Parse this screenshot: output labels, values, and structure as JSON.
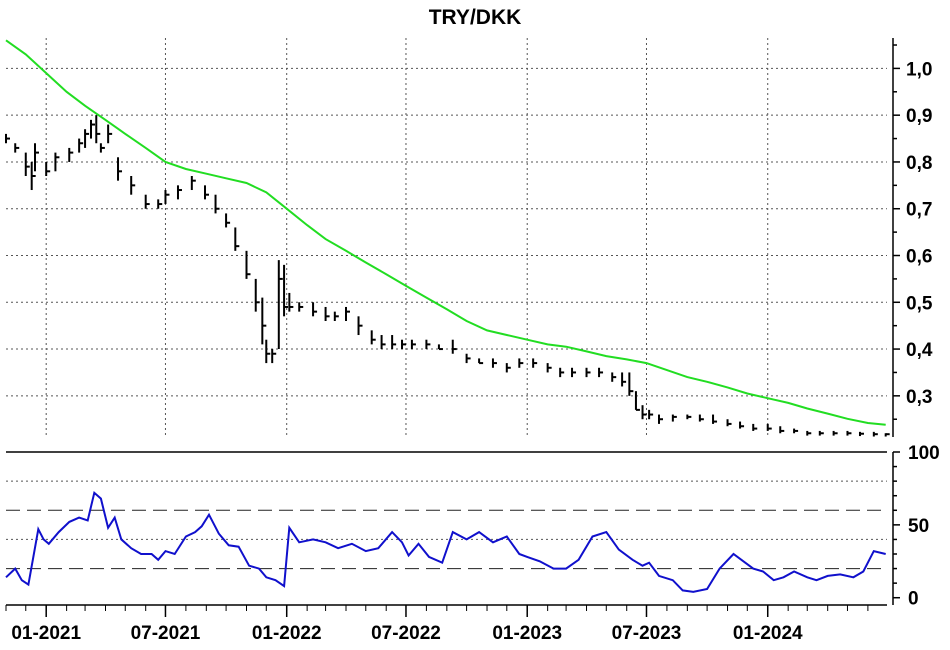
{
  "colors": {
    "price": "#000000",
    "moving_average": "#22dd22",
    "rsi": "#1010cc",
    "background": "#ffffff",
    "grid": "#555555"
  },
  "chart_data": [
    {
      "type": "line",
      "title": "TRY/DKK",
      "y_tick_labels": [
        "1,0",
        "0,9",
        "0,8",
        "0,7",
        "0,6",
        "0,5",
        "0,4",
        "0,3"
      ],
      "y_ticks": [
        1.0,
        0.9,
        0.8,
        0.7,
        0.6,
        0.5,
        0.4,
        0.3
      ],
      "ylim": [
        0.212,
        1.065
      ],
      "xlim": [
        "2020-11-01",
        "2024-06-30"
      ],
      "x_tick_labels": [
        "01-2021",
        "07-2021",
        "01-2022",
        "07-2022",
        "01-2023",
        "07-2023",
        "01-2024"
      ],
      "x_ticks": [
        "2021-01-01",
        "2021-07-01",
        "2022-01-01",
        "2022-07-01",
        "2023-01-01",
        "2023-07-01",
        "2024-01-01"
      ],
      "grid": true,
      "series": [
        {
          "style": "bar",
          "x": [
            "2020-11-01",
            "2020-11-15",
            "2020-12-01",
            "2020-12-10",
            "2020-12-15",
            "2021-01-01",
            "2021-01-15",
            "2021-02-05",
            "2021-02-20",
            "2021-03-01",
            "2021-03-10",
            "2021-03-18",
            "2021-03-25",
            "2021-04-05",
            "2021-04-20",
            "2021-05-10",
            "2021-06-01",
            "2021-06-20",
            "2021-07-01",
            "2021-07-20",
            "2021-08-10",
            "2021-08-30",
            "2021-09-15",
            "2021-10-01",
            "2021-10-15",
            "2021-11-01",
            "2021-11-15",
            "2021-11-25",
            "2021-12-01",
            "2021-12-10",
            "2021-12-20",
            "2021-12-28",
            "2022-01-05",
            "2022-01-20",
            "2022-02-10",
            "2022-03-01",
            "2022-03-15",
            "2022-04-01",
            "2022-04-20",
            "2022-05-10",
            "2022-05-25",
            "2022-06-10",
            "2022-06-25",
            "2022-07-10",
            "2022-08-01",
            "2022-08-20",
            "2022-09-10",
            "2022-10-01",
            "2022-10-20",
            "2022-11-10",
            "2022-12-01",
            "2022-12-20",
            "2023-01-10",
            "2023-02-01",
            "2023-02-20",
            "2023-03-10",
            "2023-04-01",
            "2023-04-20",
            "2023-05-10",
            "2023-05-25",
            "2023-06-05",
            "2023-06-15",
            "2023-06-25",
            "2023-07-05",
            "2023-07-20",
            "2023-08-10",
            "2023-09-01",
            "2023-09-20",
            "2023-10-10",
            "2023-11-01",
            "2023-11-20",
            "2023-12-10",
            "2024-01-01",
            "2024-01-20",
            "2024-02-10",
            "2024-03-01",
            "2024-03-20",
            "2024-04-10",
            "2024-05-01",
            "2024-05-20",
            "2024-06-10",
            "2024-06-28"
          ],
          "high": [
            0.86,
            0.84,
            0.82,
            0.8,
            0.84,
            0.8,
            0.82,
            0.83,
            0.85,
            0.87,
            0.89,
            0.9,
            0.84,
            0.88,
            0.81,
            0.77,
            0.73,
            0.72,
            0.74,
            0.75,
            0.77,
            0.75,
            0.73,
            0.69,
            0.66,
            0.61,
            0.55,
            0.51,
            0.42,
            0.4,
            0.59,
            0.58,
            0.52,
            0.5,
            0.5,
            0.49,
            0.48,
            0.49,
            0.47,
            0.44,
            0.43,
            0.43,
            0.42,
            0.42,
            0.42,
            0.41,
            0.42,
            0.39,
            0.38,
            0.38,
            0.37,
            0.38,
            0.38,
            0.37,
            0.36,
            0.36,
            0.36,
            0.36,
            0.35,
            0.35,
            0.35,
            0.31,
            0.28,
            0.27,
            0.26,
            0.26,
            0.26,
            0.26,
            0.26,
            0.25,
            0.245,
            0.24,
            0.24,
            0.235,
            0.23,
            0.225,
            0.225,
            0.225,
            0.225,
            0.223,
            0.223,
            0.22
          ],
          "low": [
            0.84,
            0.82,
            0.77,
            0.74,
            0.78,
            0.77,
            0.78,
            0.8,
            0.82,
            0.83,
            0.85,
            0.84,
            0.82,
            0.84,
            0.76,
            0.73,
            0.7,
            0.7,
            0.71,
            0.72,
            0.74,
            0.72,
            0.69,
            0.66,
            0.61,
            0.55,
            0.48,
            0.41,
            0.37,
            0.37,
            0.4,
            0.47,
            0.48,
            0.48,
            0.47,
            0.46,
            0.46,
            0.46,
            0.43,
            0.41,
            0.4,
            0.4,
            0.4,
            0.4,
            0.4,
            0.4,
            0.39,
            0.37,
            0.37,
            0.36,
            0.35,
            0.36,
            0.36,
            0.35,
            0.34,
            0.34,
            0.34,
            0.34,
            0.33,
            0.32,
            0.3,
            0.27,
            0.25,
            0.25,
            0.24,
            0.245,
            0.25,
            0.245,
            0.24,
            0.235,
            0.23,
            0.225,
            0.225,
            0.22,
            0.22,
            0.215,
            0.215,
            0.215,
            0.215,
            0.214,
            0.213,
            0.213
          ],
          "close": [
            0.85,
            0.83,
            0.79,
            0.77,
            0.82,
            0.78,
            0.81,
            0.82,
            0.84,
            0.86,
            0.88,
            0.86,
            0.83,
            0.86,
            0.78,
            0.75,
            0.71,
            0.71,
            0.73,
            0.74,
            0.76,
            0.73,
            0.7,
            0.67,
            0.62,
            0.56,
            0.5,
            0.45,
            0.39,
            0.39,
            0.55,
            0.49,
            0.49,
            0.49,
            0.48,
            0.47,
            0.47,
            0.48,
            0.45,
            0.42,
            0.41,
            0.41,
            0.41,
            0.41,
            0.41,
            0.4,
            0.4,
            0.38,
            0.37,
            0.37,
            0.36,
            0.37,
            0.37,
            0.36,
            0.35,
            0.35,
            0.35,
            0.35,
            0.34,
            0.33,
            0.31,
            0.27,
            0.26,
            0.26,
            0.25,
            0.255,
            0.255,
            0.25,
            0.245,
            0.24,
            0.235,
            0.23,
            0.23,
            0.225,
            0.225,
            0.22,
            0.22,
            0.22,
            0.22,
            0.219,
            0.218,
            0.218
          ]
        },
        {
          "style": "line",
          "x": [
            "2020-11-01",
            "2020-12-01",
            "2021-01-01",
            "2021-02-01",
            "2021-03-01",
            "2021-04-01",
            "2021-05-01",
            "2021-06-01",
            "2021-07-01",
            "2021-08-01",
            "2021-09-01",
            "2021-10-01",
            "2021-11-01",
            "2021-12-01",
            "2022-01-01",
            "2022-02-01",
            "2022-03-01",
            "2022-04-01",
            "2022-05-01",
            "2022-06-01",
            "2022-07-01",
            "2022-08-01",
            "2022-09-01",
            "2022-10-01",
            "2022-11-01",
            "2022-12-01",
            "2023-01-01",
            "2023-02-01",
            "2023-03-01",
            "2023-04-01",
            "2023-05-01",
            "2023-06-01",
            "2023-07-01",
            "2023-08-01",
            "2023-09-01",
            "2023-10-01",
            "2023-11-01",
            "2023-12-01",
            "2024-01-01",
            "2024-02-01",
            "2024-03-01",
            "2024-04-01",
            "2024-05-01",
            "2024-06-01",
            "2024-06-28"
          ],
          "y": [
            1.06,
            1.03,
            0.99,
            0.95,
            0.92,
            0.89,
            0.86,
            0.83,
            0.8,
            0.785,
            0.775,
            0.765,
            0.755,
            0.735,
            0.7,
            0.665,
            0.635,
            0.61,
            0.585,
            0.56,
            0.535,
            0.51,
            0.485,
            0.46,
            0.44,
            0.43,
            0.42,
            0.41,
            0.405,
            0.395,
            0.385,
            0.378,
            0.37,
            0.355,
            0.34,
            0.33,
            0.318,
            0.305,
            0.295,
            0.285,
            0.273,
            0.262,
            0.251,
            0.242,
            0.238
          ]
        }
      ]
    },
    {
      "type": "line",
      "y_tick_labels": [
        "100",
        "50",
        "0"
      ],
      "y_ticks": [
        100,
        50,
        0
      ],
      "ylim": [
        -5,
        100
      ],
      "reference_lines_dashed": [
        60,
        20
      ],
      "reference_lines_dotted": [
        80,
        40
      ],
      "series": [
        {
          "x": [
            "2020-11-01",
            "2020-11-15",
            "2020-11-25",
            "2020-12-05",
            "2020-12-20",
            "2020-12-28",
            "2021-01-05",
            "2021-01-20",
            "2021-02-05",
            "2021-02-20",
            "2021-03-05",
            "2021-03-15",
            "2021-03-25",
            "2021-04-05",
            "2021-04-15",
            "2021-04-25",
            "2021-05-10",
            "2021-05-25",
            "2021-06-10",
            "2021-06-20",
            "2021-07-01",
            "2021-07-15",
            "2021-08-01",
            "2021-08-15",
            "2021-08-25",
            "2021-09-05",
            "2021-09-20",
            "2021-10-05",
            "2021-10-20",
            "2021-11-05",
            "2021-11-20",
            "2021-12-01",
            "2021-12-15",
            "2021-12-28",
            "2022-01-05",
            "2022-01-20",
            "2022-02-10",
            "2022-03-01",
            "2022-03-20",
            "2022-04-10",
            "2022-05-01",
            "2022-05-20",
            "2022-06-10",
            "2022-06-25",
            "2022-07-05",
            "2022-07-20",
            "2022-08-05",
            "2022-08-25",
            "2022-09-10",
            "2022-10-01",
            "2022-10-20",
            "2022-11-10",
            "2022-12-01",
            "2022-12-20",
            "2023-01-01",
            "2023-01-20",
            "2023-02-10",
            "2023-03-01",
            "2023-03-20",
            "2023-04-10",
            "2023-05-01",
            "2023-05-20",
            "2023-06-10",
            "2023-06-25",
            "2023-07-05",
            "2023-07-20",
            "2023-08-10",
            "2023-08-25",
            "2023-09-10",
            "2023-10-01",
            "2023-10-20",
            "2023-11-10",
            "2023-11-25",
            "2023-12-10",
            "2023-12-25",
            "2024-01-10",
            "2024-01-25",
            "2024-02-10",
            "2024-03-01",
            "2024-03-15",
            "2024-04-01",
            "2024-04-20",
            "2024-05-10",
            "2024-05-25",
            "2024-06-10",
            "2024-06-28"
          ],
          "y": [
            14,
            20,
            12,
            9,
            47,
            40,
            37,
            45,
            52,
            55,
            53,
            72,
            68,
            48,
            55,
            40,
            34,
            30,
            30,
            26,
            32,
            30,
            42,
            45,
            49,
            57,
            44,
            36,
            35,
            22,
            20,
            14,
            12,
            8,
            48,
            38,
            40,
            38,
            34,
            37,
            32,
            34,
            45,
            38,
            29,
            37,
            28,
            24,
            45,
            40,
            45,
            38,
            42,
            30,
            28,
            25,
            20,
            20,
            26,
            42,
            45,
            33,
            26,
            22,
            24,
            15,
            12,
            5,
            4,
            6,
            20,
            30,
            25,
            20,
            18,
            12,
            14,
            18,
            14,
            12,
            15,
            16,
            14,
            18,
            32,
            30
          ]
        }
      ]
    }
  ]
}
